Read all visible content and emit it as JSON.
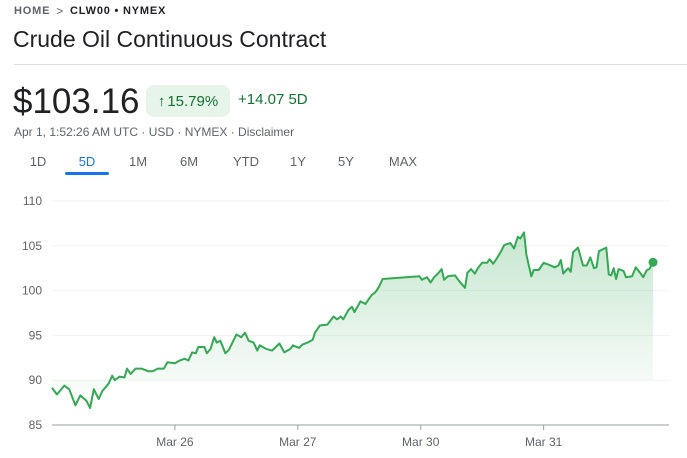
{
  "breadcrumb": {
    "home": "HOME",
    "separator": ">",
    "symbol": "CLW00 • NYMEX"
  },
  "title": "Crude Oil Continuous Contract",
  "quote": {
    "price": "$103.16",
    "percent_change": "15.79%",
    "arrow_icon": "arrow-up-icon",
    "change": "+14.07 5D",
    "subtitle": "Apr 1, 1:52:26 AM UTC · USD · NYMEX · Disclaimer"
  },
  "tabs": [
    {
      "label": "1D",
      "active": false
    },
    {
      "label": "5D",
      "active": true
    },
    {
      "label": "1M",
      "active": false
    },
    {
      "label": "6M",
      "active": false
    },
    {
      "label": "YTD",
      "active": false
    },
    {
      "label": "1Y",
      "active": false
    },
    {
      "label": "5Y",
      "active": false
    },
    {
      "label": "MAX",
      "active": false
    }
  ],
  "colors": {
    "up": "#34a853",
    "up_text": "#137333",
    "badge_bg": "#e6f4ea",
    "accent": "#1a73e8"
  },
  "chart_data": {
    "type": "area",
    "title": "",
    "xlabel": "",
    "ylabel": "",
    "ylim": [
      85,
      110
    ],
    "y_ticks": [
      "110",
      "105",
      "100",
      "95",
      "90",
      "85"
    ],
    "xlim": [
      0,
      5.02
    ],
    "x_ticks": [
      {
        "x": 1,
        "label": "Mar 26"
      },
      {
        "x": 2,
        "label": "Mar 27"
      },
      {
        "x": 3,
        "label": "Mar 30"
      },
      {
        "x": 4,
        "label": "Mar 31"
      }
    ],
    "grid": true,
    "series": [
      {
        "x": [
          0,
          0.04,
          0.1,
          0.14,
          0.19,
          0.23,
          0.28,
          0.31,
          0.34,
          0.38,
          0.41,
          0.46,
          0.49,
          0.51,
          0.55,
          0.59,
          0.61,
          0.64,
          0.68,
          0.73,
          0.78,
          0.82,
          0.86,
          0.91,
          0.94,
          1.0,
          1.04,
          1.08,
          1.11,
          1.14,
          1.17,
          1.19,
          1.24,
          1.26,
          1.29,
          1.32,
          1.34,
          1.37,
          1.41,
          1.44,
          1.5,
          1.54,
          1.57,
          1.6,
          1.64,
          1.67,
          1.69,
          1.74,
          1.79,
          1.85,
          1.89,
          1.94,
          1.96,
          2.01,
          2.04,
          2.08,
          2.12,
          2.14,
          2.18,
          2.24,
          2.29,
          2.32,
          2.35,
          2.37,
          2.41,
          2.44,
          2.46,
          2.51,
          2.55,
          2.6,
          2.63,
          2.66,
          2.69,
          2.99,
          3.01,
          3.05,
          3.08,
          3.11,
          3.14,
          3.17,
          3.19,
          3.22,
          3.28,
          3.31,
          3.36,
          3.38,
          3.41,
          3.44,
          3.47,
          3.5,
          3.54,
          3.56,
          3.59,
          3.62,
          3.65,
          3.68,
          3.73,
          3.76,
          3.79,
          3.81,
          3.84,
          3.86,
          3.9,
          3.92,
          3.96,
          4.0,
          4.04,
          4.09,
          4.12,
          4.14,
          4.16,
          4.2,
          4.22,
          4.24,
          4.28,
          4.32,
          4.35,
          4.38,
          4.41,
          4.43,
          4.45,
          4.48,
          4.51,
          4.53,
          4.55,
          4.57,
          4.59,
          4.61,
          4.65,
          4.67,
          4.72,
          4.75,
          4.79,
          4.81,
          4.84,
          4.86,
          4.89
        ],
        "y": [
          89.15,
          88.4,
          89.4,
          89.0,
          87.2,
          88.3,
          87.7,
          86.9,
          89.0,
          87.9,
          88.8,
          89.6,
          90.5,
          90.0,
          90.4,
          90.3,
          91.3,
          90.7,
          91.3,
          91.3,
          91.0,
          91.0,
          91.3,
          91.3,
          92.0,
          91.9,
          92.2,
          92.4,
          92.2,
          93.1,
          93.0,
          93.7,
          93.7,
          93.0,
          93.5,
          94.8,
          94.2,
          94.4,
          93.0,
          93.4,
          95.1,
          94.8,
          95.3,
          94.4,
          94.2,
          93.3,
          93.9,
          93.5,
          93.3,
          94.1,
          93.1,
          93.5,
          93.9,
          93.6,
          94.0,
          94.2,
          94.5,
          95.3,
          96.1,
          96.2,
          97.1,
          96.8,
          97.1,
          96.8,
          97.8,
          98.2,
          97.6,
          98.8,
          98.5,
          99.5,
          99.8,
          100.4,
          101.3,
          101.6,
          101.2,
          101.5,
          100.9,
          101.5,
          101.9,
          102.4,
          101.2,
          101.6,
          101.7,
          101.1,
          100.3,
          102.0,
          102.4,
          101.9,
          102.6,
          103.1,
          103.1,
          103.5,
          103.0,
          103.6,
          104.3,
          105.1,
          105.3,
          104.7,
          106.0,
          105.8,
          106.5,
          104.0,
          101.6,
          102.3,
          102.3,
          103.1,
          102.9,
          102.6,
          102.8,
          103.4,
          101.9,
          102.5,
          102.1,
          104.3,
          104.8,
          102.8,
          102.8,
          103.7,
          102.5,
          102.6,
          104.4,
          104.6,
          104.8,
          101.8,
          101.7,
          102.5,
          101.3,
          102.4,
          102.2,
          101.5,
          101.6,
          102.6,
          101.9,
          101.5,
          102.3,
          102.4,
          103.16
        ]
      }
    ]
  }
}
